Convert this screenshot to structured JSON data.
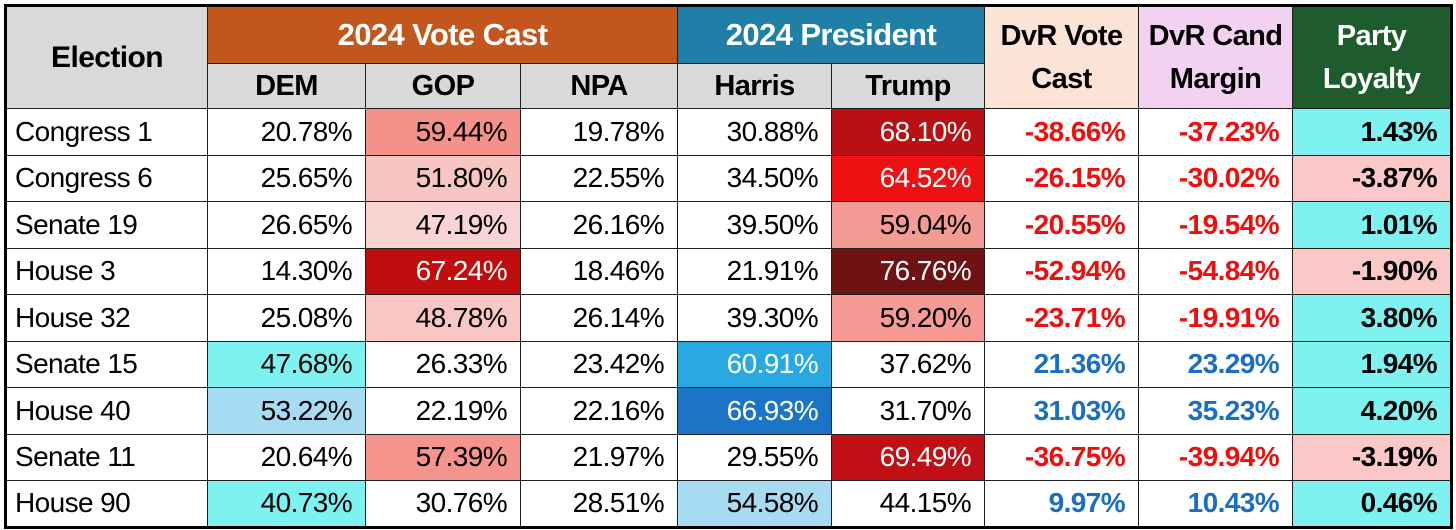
{
  "table": {
    "header": {
      "election_label": "Election",
      "groups": [
        {
          "label": "2024 Vote Cast",
          "bg": "#c2561c",
          "color": "#ffffff"
        },
        {
          "label": "2024 President",
          "bg": "#1f7fa6",
          "color": "#ffffff"
        }
      ],
      "subcols": [
        "DEM",
        "GOP",
        "NPA",
        "Harris",
        "Trump"
      ],
      "tall_cols": [
        {
          "lines": [
            "DvR Vote",
            "Cast"
          ],
          "bg": "#fbe3d6",
          "color": "#000000"
        },
        {
          "lines": [
            "DvR Cand",
            "Margin"
          ],
          "bg": "#f3d1f1",
          "color": "#000000"
        },
        {
          "lines": [
            "Party",
            "Loyalty"
          ],
          "bg": "#1e5c2e",
          "color": "#ffffff"
        }
      ]
    },
    "col_names": [
      "dem",
      "gop",
      "npa",
      "harris",
      "trump",
      "dvr-vote-cast",
      "dvr-cand-margin",
      "party-loyalty"
    ],
    "palette": {
      "negative_text_red": "#f20d0d",
      "positive_text_blue": "#1a6fc4",
      "loyalty_positive_cyan": "#7ef1f1",
      "loyalty_negative_pink": "#fac8c7"
    },
    "rows": [
      {
        "election": "Congress 1",
        "cells": [
          {
            "v": "20.78%"
          },
          {
            "v": "59.44%",
            "bg": "#f4918b"
          },
          {
            "v": "19.78%"
          },
          {
            "v": "30.88%"
          },
          {
            "v": "68.10%",
            "bg": "#ba0f13",
            "fg": "#ffffff"
          },
          {
            "v": "-38.66%",
            "fg": "#f20d0d",
            "b": true
          },
          {
            "v": "-37.23%",
            "fg": "#f20d0d",
            "b": true
          },
          {
            "v": "1.43%",
            "bg": "#7ef1f1",
            "b": true
          }
        ]
      },
      {
        "election": "Congress 6",
        "cells": [
          {
            "v": "25.65%"
          },
          {
            "v": "51.80%",
            "bg": "#f8c6c2"
          },
          {
            "v": "22.55%"
          },
          {
            "v": "34.50%"
          },
          {
            "v": "64.52%",
            "bg": "#ee1114",
            "fg": "#ffffff"
          },
          {
            "v": "-26.15%",
            "fg": "#f20d0d",
            "b": true
          },
          {
            "v": "-30.02%",
            "fg": "#f20d0d",
            "b": true
          },
          {
            "v": "-3.87%",
            "bg": "#fac8c7",
            "b": true
          }
        ]
      },
      {
        "election": "Senate 19",
        "cells": [
          {
            "v": "26.65%"
          },
          {
            "v": "47.19%",
            "bg": "#fad4d2"
          },
          {
            "v": "26.16%"
          },
          {
            "v": "39.50%"
          },
          {
            "v": "59.04%",
            "bg": "#f59b96"
          },
          {
            "v": "-20.55%",
            "fg": "#f20d0d",
            "b": true
          },
          {
            "v": "-19.54%",
            "fg": "#f20d0d",
            "b": true
          },
          {
            "v": "1.01%",
            "bg": "#7ef1f1",
            "b": true
          }
        ]
      },
      {
        "election": "House 3",
        "cells": [
          {
            "v": "14.30%"
          },
          {
            "v": "67.24%",
            "bg": "#c00d0e",
            "fg": "#ffffff"
          },
          {
            "v": "18.46%"
          },
          {
            "v": "21.91%"
          },
          {
            "v": "76.76%",
            "bg": "#6e1213",
            "fg": "#ffffff"
          },
          {
            "v": "-52.94%",
            "fg": "#f20d0d",
            "b": true
          },
          {
            "v": "-54.84%",
            "fg": "#f20d0d",
            "b": true
          },
          {
            "v": "-1.90%",
            "bg": "#fac8c7",
            "b": true
          }
        ]
      },
      {
        "election": "House 32",
        "cells": [
          {
            "v": "25.08%"
          },
          {
            "v": "48.78%",
            "bg": "#f8c7c3"
          },
          {
            "v": "26.14%"
          },
          {
            "v": "39.30%"
          },
          {
            "v": "59.20%",
            "bg": "#f59a95"
          },
          {
            "v": "-23.71%",
            "fg": "#f20d0d",
            "b": true
          },
          {
            "v": "-19.91%",
            "fg": "#f20d0d",
            "b": true
          },
          {
            "v": "3.80%",
            "bg": "#7ef1f1",
            "b": true
          }
        ]
      },
      {
        "election": "Senate 15",
        "cells": [
          {
            "v": "47.68%",
            "bg": "#7ef1f1"
          },
          {
            "v": "26.33%"
          },
          {
            "v": "23.42%"
          },
          {
            "v": "60.91%",
            "bg": "#29a9e1",
            "fg": "#ffffff"
          },
          {
            "v": "37.62%"
          },
          {
            "v": "21.36%",
            "fg": "#1a6fc4",
            "b": true
          },
          {
            "v": "23.29%",
            "fg": "#1a6fc4",
            "b": true
          },
          {
            "v": "1.94%",
            "bg": "#7ef1f1",
            "b": true
          }
        ]
      },
      {
        "election": "House 40",
        "cells": [
          {
            "v": "53.22%",
            "bg": "#a6dbf2"
          },
          {
            "v": "22.19%"
          },
          {
            "v": "22.16%"
          },
          {
            "v": "66.93%",
            "bg": "#1b74c6",
            "fg": "#ffffff"
          },
          {
            "v": "31.70%"
          },
          {
            "v": "31.03%",
            "fg": "#1a6fc4",
            "b": true
          },
          {
            "v": "35.23%",
            "fg": "#1a6fc4",
            "b": true
          },
          {
            "v": "4.20%",
            "bg": "#7ef1f1",
            "b": true
          }
        ]
      },
      {
        "election": "Senate 11",
        "cells": [
          {
            "v": "20.64%"
          },
          {
            "v": "57.39%",
            "bg": "#f5938d"
          },
          {
            "v": "21.97%"
          },
          {
            "v": "29.55%"
          },
          {
            "v": "69.49%",
            "bg": "#c11015",
            "fg": "#ffffff"
          },
          {
            "v": "-36.75%",
            "fg": "#f20d0d",
            "b": true
          },
          {
            "v": "-39.94%",
            "fg": "#f20d0d",
            "b": true
          },
          {
            "v": "-3.19%",
            "bg": "#fac8c7",
            "b": true
          }
        ]
      },
      {
        "election": "House 90",
        "cells": [
          {
            "v": "40.73%",
            "bg": "#7ef1f1"
          },
          {
            "v": "30.76%"
          },
          {
            "v": "28.51%"
          },
          {
            "v": "54.58%",
            "bg": "#a6dbf2"
          },
          {
            "v": "44.15%"
          },
          {
            "v": "9.97%",
            "fg": "#1a6fc4",
            "b": true
          },
          {
            "v": "10.43%",
            "fg": "#1a6fc4",
            "b": true
          },
          {
            "v": "0.46%",
            "bg": "#7ef1f1",
            "b": true
          }
        ]
      }
    ]
  },
  "chart_data": {
    "type": "table",
    "title": "2024 Vote Cast vs 2024 President results by election",
    "columns": [
      "Election",
      "DEM",
      "GOP",
      "NPA",
      "Harris",
      "Trump",
      "DvR Vote Cast",
      "DvR Cand Margin",
      "Party Loyalty"
    ],
    "units": "percent",
    "rows": [
      [
        "Congress 1",
        20.78,
        59.44,
        19.78,
        30.88,
        68.1,
        -38.66,
        -37.23,
        1.43
      ],
      [
        "Congress 6",
        25.65,
        51.8,
        22.55,
        34.5,
        64.52,
        -26.15,
        -30.02,
        -3.87
      ],
      [
        "Senate 19",
        26.65,
        47.19,
        26.16,
        39.5,
        59.04,
        -20.55,
        -19.54,
        1.01
      ],
      [
        "House 3",
        14.3,
        67.24,
        18.46,
        21.91,
        76.76,
        -52.94,
        -54.84,
        -1.9
      ],
      [
        "House 32",
        25.08,
        48.78,
        26.14,
        39.3,
        59.2,
        -23.71,
        -19.91,
        3.8
      ],
      [
        "Senate 15",
        47.68,
        26.33,
        23.42,
        60.91,
        37.62,
        21.36,
        23.29,
        1.94
      ],
      [
        "House 40",
        53.22,
        22.19,
        22.16,
        66.93,
        31.7,
        31.03,
        35.23,
        4.2
      ],
      [
        "Senate 11",
        20.64,
        57.39,
        21.97,
        29.55,
        69.49,
        -36.75,
        -39.94,
        -3.19
      ],
      [
        "House 90",
        40.73,
        30.76,
        28.51,
        54.58,
        44.15,
        9.97,
        10.43,
        0.46
      ]
    ]
  }
}
